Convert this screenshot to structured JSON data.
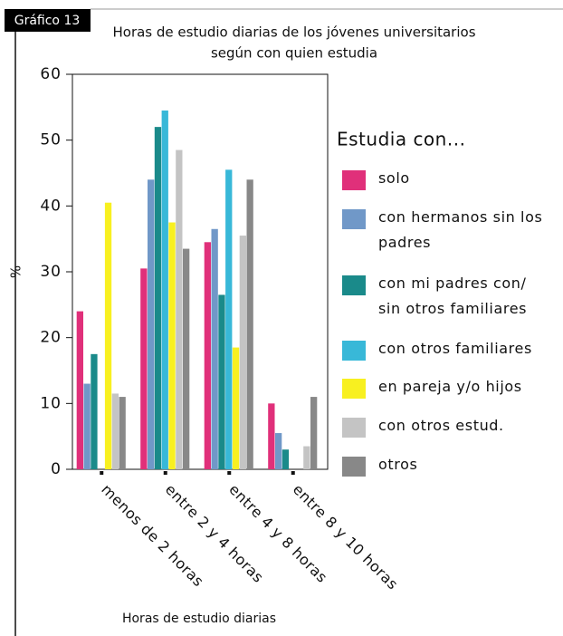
{
  "badge": "Gráfico 13",
  "chart_data": {
    "type": "bar",
    "title": [
      "Horas de estudio diarias de los jóvenes universitarios",
      "según con quien estudia"
    ],
    "x_label": "Horas de estudio diarias",
    "y_label": "%",
    "legend_title": "Estudia con...",
    "categories": [
      "menos de 2 horas",
      "entre 2 y 4 horas",
      "entre 4 y 8 horas",
      "entre 8 y 10 horas"
    ],
    "series": [
      {
        "name": "solo",
        "color": "#e0307a",
        "values": [
          24,
          30.5,
          34.5,
          10
        ]
      },
      {
        "name": "con hermanos sin los padres",
        "color": "#7098c8",
        "values": [
          13,
          44,
          36.5,
          5.5
        ]
      },
      {
        "name": "con mi padres con/ sin otros familiares",
        "color": "#1a8a8a",
        "values": [
          17.5,
          52,
          26.5,
          3
        ]
      },
      {
        "name": "con otros familiares",
        "color": "#38b8d8",
        "values": [
          0,
          54.5,
          45.5,
          0
        ]
      },
      {
        "name": "en pareja y/o hijos",
        "color": "#f8f020",
        "values": [
          40.5,
          37.5,
          18.5,
          0
        ]
      },
      {
        "name": "con otros estud.",
        "color": "#c4c4c4",
        "values": [
          11.5,
          48.5,
          35.5,
          3.5
        ]
      },
      {
        "name": "otros",
        "color": "#888888",
        "values": [
          11,
          33.5,
          44,
          11
        ]
      }
    ],
    "ylim": [
      0,
      60
    ],
    "yticks": [
      0,
      10,
      20,
      30,
      40,
      50,
      60
    ]
  }
}
